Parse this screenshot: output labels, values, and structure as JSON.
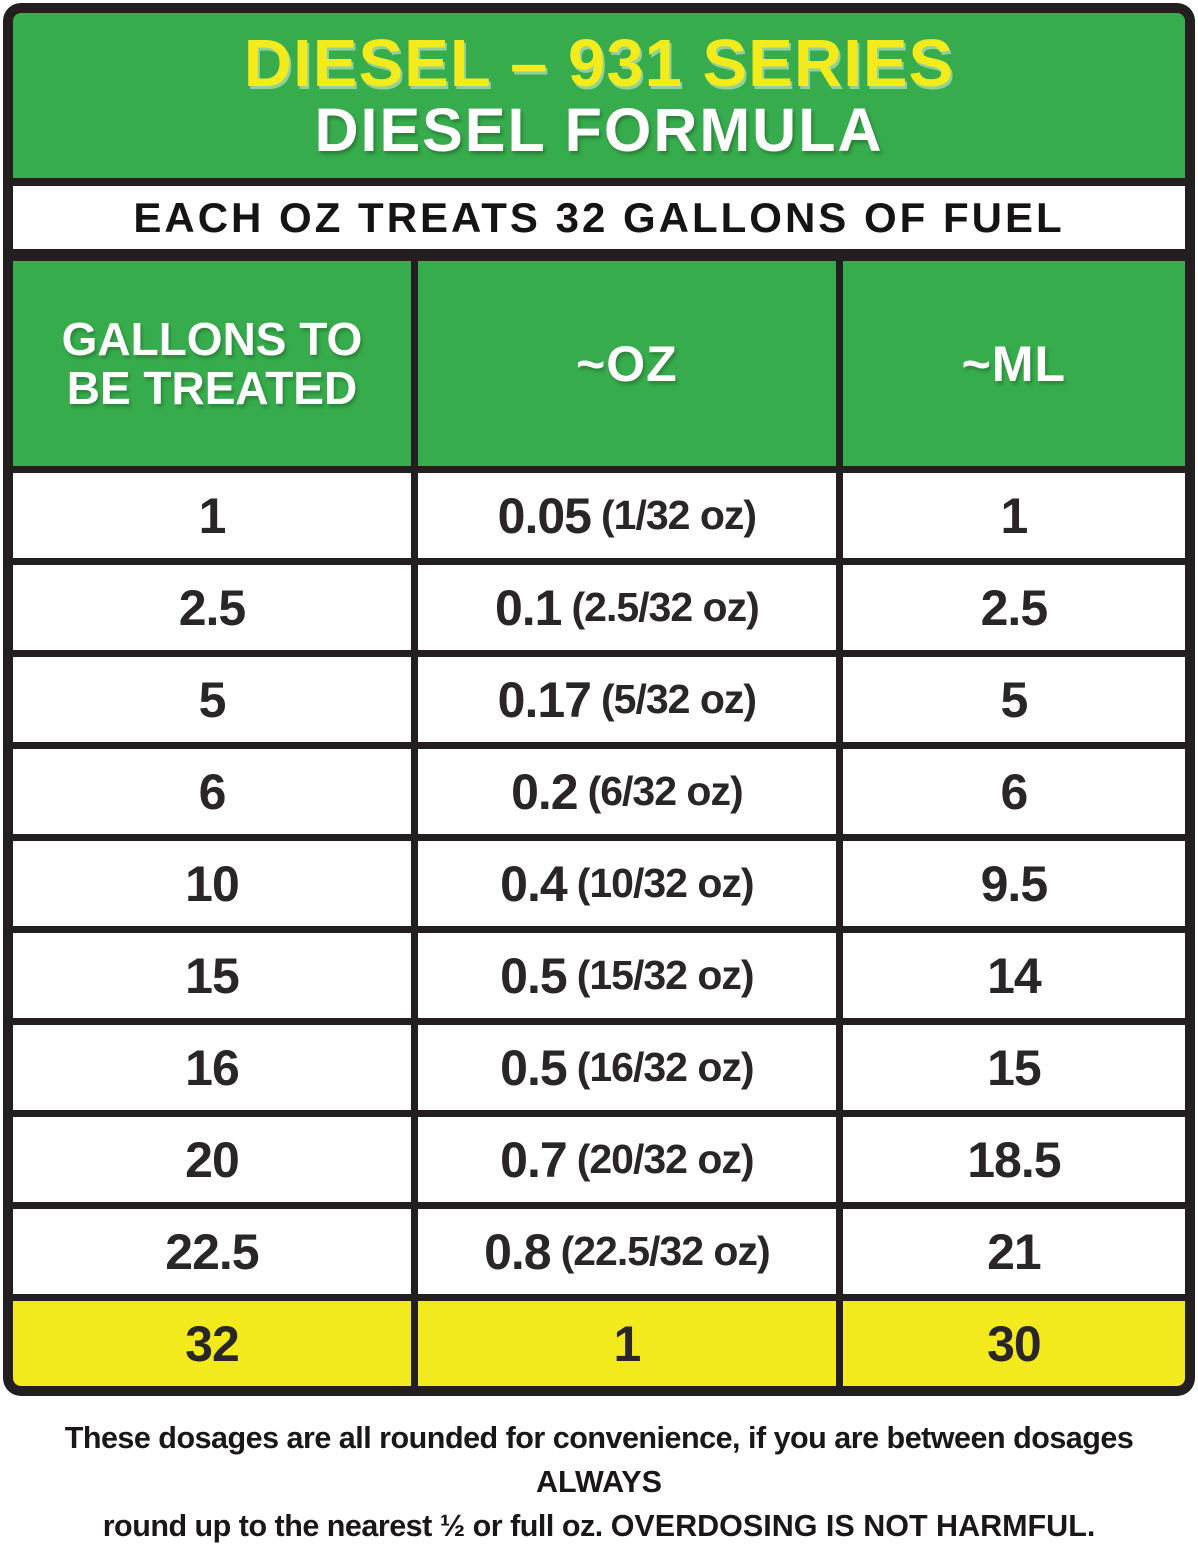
{
  "colors": {
    "green": "#37ac4c",
    "yellow": "#f2ea1c",
    "title_yellow": "#f3eb1c",
    "frame_black": "#231f20",
    "white": "#ffffff"
  },
  "header": {
    "title_line1": "DIESEL – 931 SERIES",
    "title_line2": "DIESEL FORMULA"
  },
  "subheader": {
    "text": "EACH OZ TREATS 32 GALLONS OF FUEL"
  },
  "table": {
    "columns": {
      "gallons_line1": "GALLONS TO",
      "gallons_line2": "BE TREATED",
      "oz": "~OZ",
      "ml": "~ML"
    },
    "rows": [
      {
        "gallons": "1",
        "oz_main": "0.05",
        "oz_note": "(1/32 oz)",
        "ml": "1"
      },
      {
        "gallons": "2.5",
        "oz_main": "0.1",
        "oz_note": "(2.5/32 oz)",
        "ml": "2.5"
      },
      {
        "gallons": "5",
        "oz_main": "0.17",
        "oz_note": "(5/32 oz)",
        "ml": "5"
      },
      {
        "gallons": "6",
        "oz_main": "0.2",
        "oz_note": "(6/32 oz)",
        "ml": "6"
      },
      {
        "gallons": "10",
        "oz_main": "0.4",
        "oz_note": "(10/32 oz)",
        "ml": "9.5"
      },
      {
        "gallons": "15",
        "oz_main": "0.5",
        "oz_note": "(15/32 oz)",
        "ml": "14"
      },
      {
        "gallons": "16",
        "oz_main": "0.5",
        "oz_note": "(16/32 oz)",
        "ml": "15"
      },
      {
        "gallons": "20",
        "oz_main": "0.7",
        "oz_note": "(20/32 oz)",
        "ml": "18.5"
      },
      {
        "gallons": "22.5",
        "oz_main": "0.8",
        "oz_note": "(22.5/32 oz)",
        "ml": "21"
      }
    ],
    "highlight_row": {
      "gallons": "32",
      "oz_main": "1",
      "oz_note": "",
      "ml": "30"
    }
  },
  "footer": {
    "line1_normal": "These dosages are all rounded for convenience, if you are between dosages ",
    "line1_bold": "ALWAYS",
    "line2_normal": "round up to the nearest ½ or full oz. ",
    "line2_bold": "OVERDOSING IS NOT HARMFUL."
  },
  "chart_data": {
    "type": "table",
    "title": "DIESEL – 931 SERIES DIESEL FORMULA",
    "subtitle": "EACH OZ TREATS 32 GALLONS OF FUEL",
    "columns": [
      "GALLONS TO BE TREATED",
      "~OZ",
      "~ML"
    ],
    "rows": [
      [
        "1",
        "0.05 (1/32 oz)",
        "1"
      ],
      [
        "2.5",
        "0.1 (2.5/32 oz)",
        "2.5"
      ],
      [
        "5",
        "0.17 (5/32 oz)",
        "5"
      ],
      [
        "6",
        "0.2 (6/32 oz)",
        "6"
      ],
      [
        "10",
        "0.4 (10/32 oz)",
        "9.5"
      ],
      [
        "15",
        "0.5 (15/32 oz)",
        "14"
      ],
      [
        "16",
        "0.5 (16/32 oz)",
        "15"
      ],
      [
        "20",
        "0.7 (20/32 oz)",
        "18.5"
      ],
      [
        "22.5",
        "0.8 (22.5/32 oz)",
        "21"
      ],
      [
        "32",
        "1",
        "30"
      ]
    ],
    "highlighted_row_index": 9,
    "highlighted_row_color": "#f2ea1c",
    "note": "These dosages are all rounded for convenience, if you are between dosages ALWAYS round up to the nearest ½ or full oz. OVERDOSING IS NOT HARMFUL."
  }
}
